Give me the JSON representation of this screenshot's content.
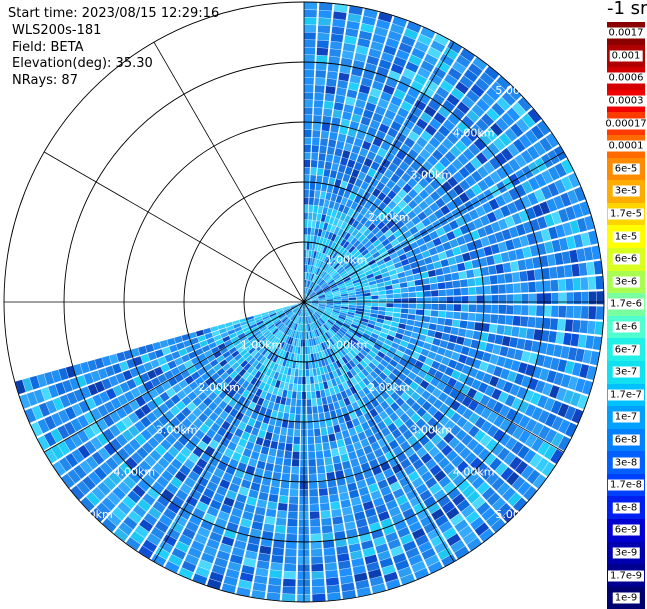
{
  "header": {
    "start_time": "Start time: 2023/08/15 12:29:16",
    "instrument": "WLS200s-181",
    "field": "Field: BETA",
    "elevation": "Elevation(deg): 35.30",
    "nrays": "NRays: 87"
  },
  "colorbar": {
    "units": "-1 sr",
    "labels": [
      "0.0017",
      "0.001",
      "0.0006",
      "0.0003",
      "0.00017",
      "0.0001",
      "6e-5",
      "3e-5",
      "1.7e-5",
      "1e-5",
      "6e-6",
      "3e-6",
      "1.7e-6",
      "1e-6",
      "6e-7",
      "3e-7",
      "1.7e-7",
      "1e-7",
      "6e-8",
      "3e-8",
      "1.7e-8",
      "1e-8",
      "6e-9",
      "3e-9",
      "1.7e-9",
      "1e-9"
    ],
    "colors": [
      "#8b0000",
      "#b00000",
      "#d40000",
      "#f00000",
      "#ff3a00",
      "#ff6a00",
      "#ff8c00",
      "#ffac00",
      "#ffd400",
      "#ffff00",
      "#d8ff20",
      "#a8ff50",
      "#78ffa0",
      "#50ffd0",
      "#20f0e8",
      "#10e0f0",
      "#00c0ff",
      "#00a0ff",
      "#0080ff",
      "#0060ff",
      "#0040ff",
      "#0020f0",
      "#0000d0",
      "#0000b0",
      "#000090",
      "#000070"
    ]
  },
  "chart_data": {
    "type": "polar_ppi",
    "range_rings_km": [
      1.0,
      2.0,
      3.0,
      4.0,
      5.0
    ],
    "ring_labels": [
      "1.00km",
      "2.00km",
      "3.00km",
      "4.00km",
      "5.00km"
    ],
    "max_range_km": 5.0,
    "azimuth_start_deg": 0,
    "azimuth_end_deg": 255,
    "spokes_deg": [
      0,
      30,
      60,
      90,
      120,
      150,
      180,
      210,
      240,
      270,
      300,
      330
    ],
    "nrays": 87
  }
}
